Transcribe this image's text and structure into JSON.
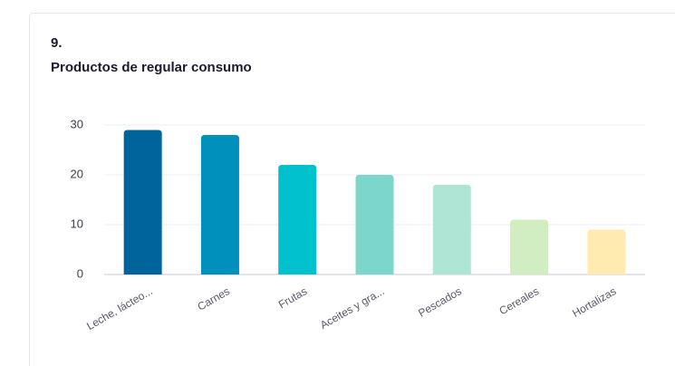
{
  "chart_data": {
    "type": "bar",
    "title": "9.",
    "subtitle": "Productos de regular consumo",
    "categories": [
      "Leche, lácteo...",
      "Carnes",
      "Frutas",
      "Aceites y gra...",
      "Pescados",
      "Cereales",
      "Hortalizas"
    ],
    "values": [
      29,
      28,
      22,
      20,
      18,
      11,
      9
    ],
    "colors": [
      "#00649c",
      "#0090bc",
      "#00c1cc",
      "#7dd6cc",
      "#aee5d4",
      "#d1edc2",
      "#ffeab0"
    ],
    "ylim": [
      0,
      30
    ],
    "yticks": [
      0,
      10,
      20,
      30
    ],
    "grid": true
  }
}
